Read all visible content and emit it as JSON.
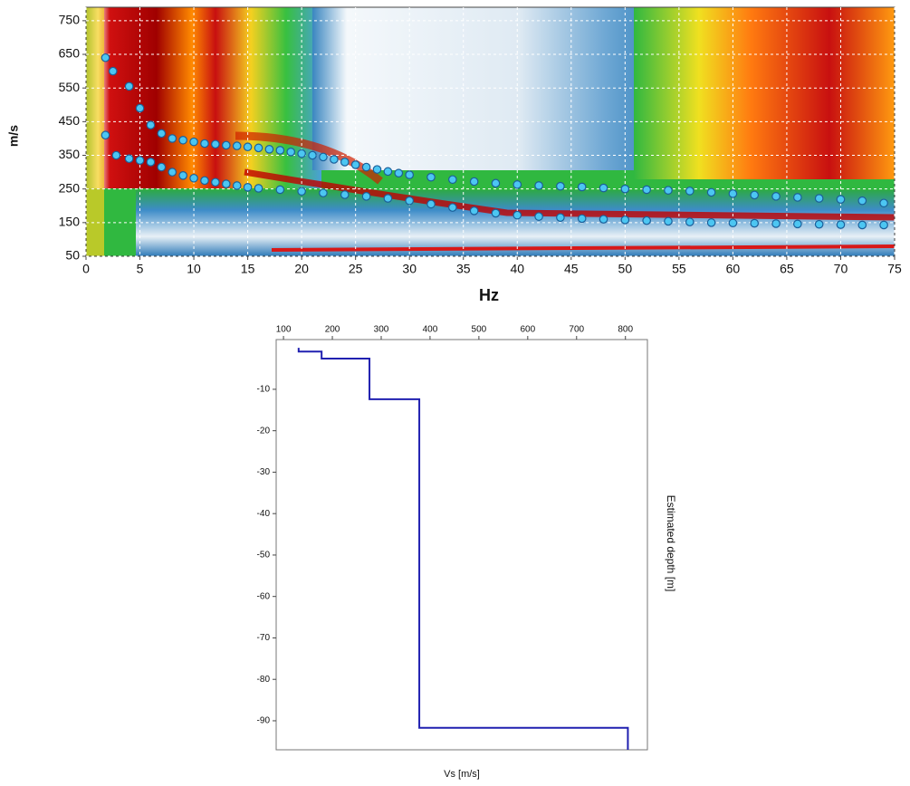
{
  "chart_data": [
    {
      "type": "scatter",
      "xlabel": "Hz",
      "ylabel": "m/s",
      "xlim": [
        0,
        75
      ],
      "ylim": [
        50,
        790
      ],
      "xticks": [
        0,
        5,
        10,
        15,
        20,
        25,
        30,
        35,
        40,
        45,
        50,
        55,
        60,
        65,
        70,
        75
      ],
      "yticks": [
        50,
        150,
        250,
        350,
        450,
        550,
        650,
        750
      ],
      "grid": true,
      "series": [
        {
          "color": "#4cc6f2",
          "x": [
            1.8,
            2.5,
            4,
            5,
            6,
            7,
            8,
            9,
            10,
            11,
            12,
            13,
            14,
            15,
            16,
            17,
            18,
            19,
            20,
            21,
            22,
            23,
            24,
            25,
            26,
            27,
            28,
            29,
            30,
            32,
            34,
            36,
            38,
            40,
            42,
            44,
            46,
            48,
            50,
            52,
            54,
            56,
            58,
            60,
            62,
            64,
            66,
            68,
            70,
            72,
            74
          ],
          "values": [
            640,
            600,
            555,
            490,
            440,
            415,
            400,
            395,
            390,
            385,
            383,
            380,
            378,
            375,
            372,
            368,
            365,
            360,
            355,
            350,
            345,
            338,
            330,
            322,
            315,
            308,
            302,
            297,
            292,
            285,
            278,
            272,
            267,
            263,
            260,
            258,
            256,
            253,
            250,
            248,
            246,
            244,
            240,
            236,
            232,
            228,
            225,
            222,
            219,
            215,
            208
          ]
        },
        {
          "color": "#4cc6f2",
          "x": [
            1.8,
            2.8,
            4,
            5,
            6,
            7,
            8,
            9,
            10,
            11,
            12,
            13,
            14,
            15,
            16,
            18,
            20,
            22,
            24,
            26,
            28,
            30,
            32,
            34,
            36,
            38,
            40,
            42,
            44,
            46,
            48,
            50,
            52,
            54,
            56,
            58,
            60,
            62,
            64,
            66,
            68,
            70,
            72,
            74
          ],
          "values": [
            410,
            350,
            340,
            335,
            330,
            315,
            300,
            290,
            282,
            275,
            270,
            265,
            260,
            255,
            252,
            248,
            243,
            238,
            233,
            228,
            222,
            215,
            205,
            195,
            185,
            178,
            172,
            168,
            165,
            162,
            160,
            158,
            156,
            154,
            152,
            150,
            149,
            148,
            147,
            146,
            145,
            144,
            143,
            143
          ]
        }
      ]
    },
    {
      "type": "line",
      "xlabel": "Vs [m/s]",
      "ylabel": "Estimated depth [m]",
      "xlim": [
        85,
        845
      ],
      "ylim": [
        -97,
        2
      ],
      "xticks": [
        100,
        200,
        300,
        400,
        500,
        600,
        700,
        800
      ],
      "yticks": [
        -10,
        -20,
        -30,
        -40,
        -50,
        -60,
        -70,
        -80,
        -90
      ],
      "grid": false,
      "series": [
        {
          "color": "#2020b0",
          "x": [
            131,
            131,
            178,
            178,
            276,
            276,
            378,
            378,
            805,
            805
          ],
          "values": [
            0,
            -0.9,
            -0.9,
            -2.6,
            -2.6,
            -12.4,
            -12.4,
            -91.7,
            -91.7,
            -97
          ]
        }
      ]
    }
  ]
}
